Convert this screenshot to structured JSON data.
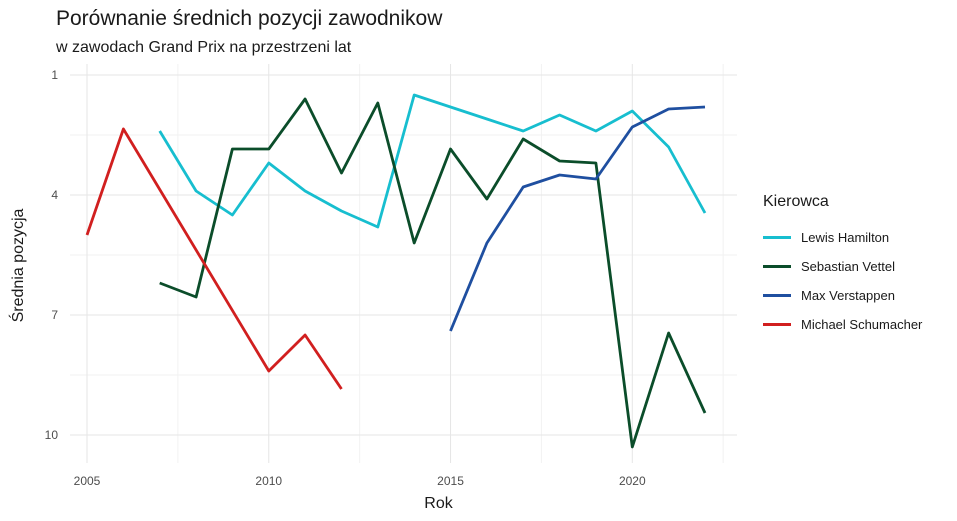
{
  "title": "Porównanie średnich pozycji zawodnikow",
  "subtitle": "w zawodach Grand Prix na przestrzeni lat",
  "legend": {
    "title": "Kierowca"
  },
  "chart_data": {
    "type": "line",
    "xlabel": "Rok",
    "ylabel": "Średnia pozycja",
    "x_ticks": [
      2005,
      2010,
      2015,
      2020
    ],
    "y_ticks": [
      1,
      4,
      7,
      10
    ],
    "xlim": [
      2005,
      2022
    ],
    "ylim": [
      10.3,
      1
    ],
    "y_reversed": true,
    "grid": true,
    "legend_position": "right",
    "series": [
      {
        "name": "Lewis Hamilton",
        "color": "#17becf",
        "points": [
          [
            2007,
            2.4
          ],
          [
            2008,
            3.9
          ],
          [
            2009,
            4.5
          ],
          [
            2010,
            3.2
          ],
          [
            2011,
            3.9
          ],
          [
            2012,
            4.4
          ],
          [
            2013,
            4.8
          ],
          [
            2014,
            1.5
          ],
          [
            2015,
            1.8
          ],
          [
            2016,
            2.1
          ],
          [
            2017,
            2.4
          ],
          [
            2018,
            2.0
          ],
          [
            2019,
            2.4
          ],
          [
            2020,
            1.9
          ],
          [
            2021,
            2.8
          ],
          [
            2022,
            4.45
          ]
        ]
      },
      {
        "name": "Sebastian Vettel",
        "color": "#0b4d2a",
        "points": [
          [
            2007,
            6.2
          ],
          [
            2008,
            6.55
          ],
          [
            2009,
            2.85
          ],
          [
            2010,
            2.85
          ],
          [
            2011,
            1.6
          ],
          [
            2012,
            3.45
          ],
          [
            2013,
            1.7
          ],
          [
            2014,
            5.2
          ],
          [
            2015,
            2.85
          ],
          [
            2016,
            4.1
          ],
          [
            2017,
            2.6
          ],
          [
            2018,
            3.15
          ],
          [
            2019,
            3.2
          ],
          [
            2020,
            10.3
          ],
          [
            2021,
            7.45
          ],
          [
            2022,
            9.45
          ]
        ]
      },
      {
        "name": "Max Verstappen",
        "color": "#1f4fa0",
        "points": [
          [
            2015,
            7.4
          ],
          [
            2016,
            5.2
          ],
          [
            2017,
            3.8
          ],
          [
            2018,
            3.5
          ],
          [
            2019,
            3.6
          ],
          [
            2020,
            2.3
          ],
          [
            2021,
            1.85
          ],
          [
            2022,
            1.8
          ]
        ]
      },
      {
        "name": "Michael Schumacher",
        "color": "#d11f1f",
        "points": [
          [
            2005,
            5.0
          ],
          [
            2006,
            2.35
          ],
          [
            2010,
            8.4
          ],
          [
            2011,
            7.5
          ],
          [
            2012,
            8.85
          ]
        ]
      }
    ]
  }
}
